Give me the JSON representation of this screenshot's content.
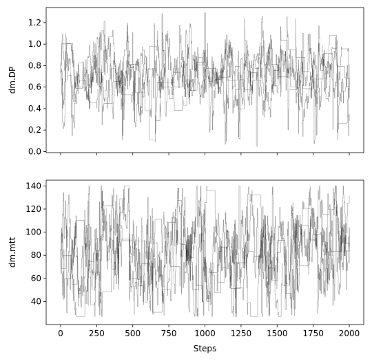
{
  "chart_data": [
    {
      "type": "line",
      "ylabel": "dm.DP",
      "xlabel": "",
      "xlim": [
        -100,
        2100
      ],
      "ylim": [
        -0.01,
        1.34
      ],
      "xticks": [
        0,
        250,
        500,
        750,
        1000,
        1250,
        1500,
        1750,
        2000
      ],
      "xtick_labels_visible": false,
      "yticks": [
        0.0,
        0.2,
        0.4,
        0.6,
        0.8,
        1.0,
        1.2
      ],
      "ytick_labels": [
        "0.0",
        "0.2",
        "0.4",
        "0.6",
        "0.8",
        "1.0",
        "1.2"
      ],
      "line_color": "#000000",
      "line_opacity": 0.4,
      "series_count": 4,
      "steps": 2000,
      "typical_range": [
        0.5,
        0.95
      ],
      "mean": 0.74,
      "min_observed": 0.05,
      "max_observed": 1.29,
      "notable": [
        {
          "x": 1000,
          "y": 1.29
        },
        {
          "x": 305,
          "y": 1.21
        },
        {
          "x": 1680,
          "y": 1.1
        },
        {
          "x": 1360,
          "y": 0.05
        },
        {
          "x": 1240,
          "y": 0.12
        },
        {
          "x": 430,
          "y": 0.15
        }
      ]
    },
    {
      "type": "line",
      "ylabel": "dm.mtt",
      "xlabel": "Steps",
      "xlim": [
        -100,
        2100
      ],
      "ylim": [
        20,
        145
      ],
      "xticks": [
        0,
        250,
        500,
        750,
        1000,
        1250,
        1500,
        1750,
        2000
      ],
      "xtick_labels": [
        "0",
        "250",
        "500",
        "750",
        "1000",
        "1250",
        "1500",
        "1750",
        "2000"
      ],
      "yticks": [
        40,
        60,
        80,
        100,
        120,
        140
      ],
      "ytick_labels": [
        "40",
        "60",
        "80",
        "100",
        "120",
        "140"
      ],
      "line_color": "#000000",
      "line_opacity": 0.4,
      "series_count": 4,
      "steps": 2000,
      "typical_range": [
        50,
        120
      ],
      "mean": 85,
      "min_observed": 27,
      "max_observed": 140,
      "notable": [
        {
          "x": 1240,
          "y": 140
        },
        {
          "x": 1215,
          "y": 27
        },
        {
          "x": 640,
          "y": 29
        },
        {
          "x": 1560,
          "y": 33
        },
        {
          "x": 20,
          "y": 42
        }
      ]
    }
  ]
}
